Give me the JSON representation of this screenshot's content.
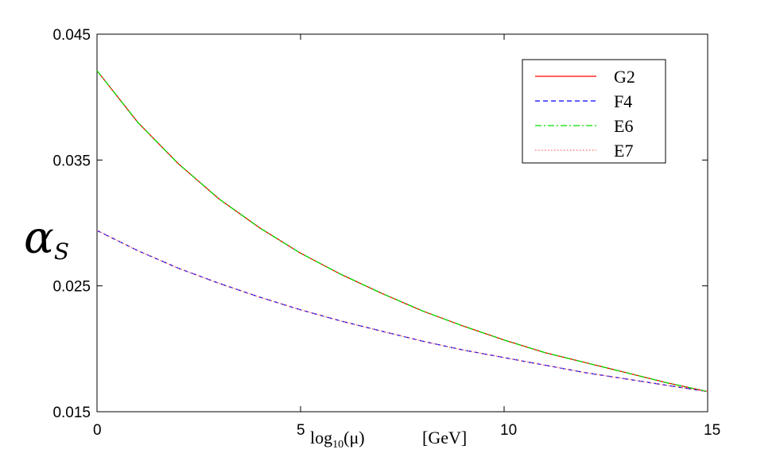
{
  "chart_data": {
    "type": "line",
    "xlabel_main": "log",
    "xlabel_sub": "10",
    "xlabel_arg": "(μ)",
    "xlabel_unit": "[GeV]",
    "ylabel_main": "α",
    "ylabel_sub": "S",
    "xlim": [
      0,
      15
    ],
    "ylim": [
      0.015,
      0.045
    ],
    "x_ticks": [
      {
        "value": 0,
        "label": "0"
      },
      {
        "value": 5,
        "label": "5"
      },
      {
        "value": 10,
        "label": "10"
      },
      {
        "value": 15,
        "label": "15"
      }
    ],
    "y_ticks": [
      {
        "value": 0.015,
        "label": "0.015"
      },
      {
        "value": 0.025,
        "label": "0.025"
      },
      {
        "value": 0.035,
        "label": "0.035"
      },
      {
        "value": 0.045,
        "label": "0.045"
      }
    ],
    "legend_position": "top-right",
    "grid": false,
    "x": [
      0,
      1,
      2,
      3,
      4,
      5,
      6,
      7,
      8,
      9,
      10,
      11,
      12,
      13,
      14,
      15
    ],
    "series": [
      {
        "name": "G2",
        "color": "#ff0000",
        "dash": "solid",
        "values": [
          0.0421,
          0.038,
          0.0347,
          0.0319,
          0.0296,
          0.0276,
          0.0259,
          0.0244,
          0.023,
          0.0218,
          0.0207,
          0.0197,
          0.0189,
          0.0181,
          0.0173,
          0.0166
        ]
      },
      {
        "name": "F4",
        "color": "#0000ff",
        "dash": "dashed",
        "values": [
          0.0294,
          0.0278,
          0.0264,
          0.0252,
          0.0241,
          0.0231,
          0.0222,
          0.0214,
          0.0206,
          0.0199,
          0.0193,
          0.0187,
          0.0181,
          0.0176,
          0.0171,
          0.0166
        ]
      },
      {
        "name": "E6",
        "color": "#00dd00",
        "dash": "dashdot",
        "values": [
          0.0421,
          0.038,
          0.0347,
          0.0319,
          0.0296,
          0.0276,
          0.0259,
          0.0244,
          0.023,
          0.0218,
          0.0207,
          0.0197,
          0.0189,
          0.0181,
          0.0173,
          0.0166
        ]
      },
      {
        "name": "E7",
        "color": "#ff6666",
        "dash": "dotted",
        "values": [
          0.0294,
          0.0278,
          0.0264,
          0.0252,
          0.0241,
          0.0231,
          0.0222,
          0.0214,
          0.0206,
          0.0199,
          0.0193,
          0.0187,
          0.0181,
          0.0176,
          0.0171,
          0.0166
        ]
      }
    ]
  }
}
